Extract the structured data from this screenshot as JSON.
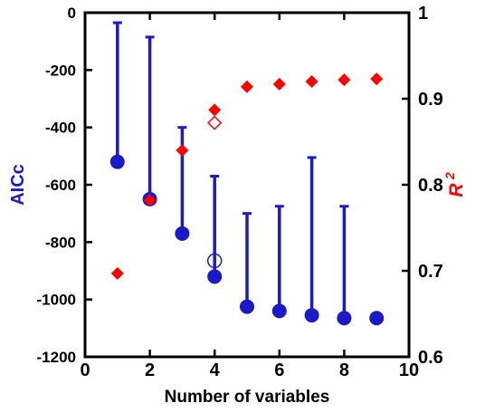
{
  "chart_data": {
    "type": "scatter",
    "xlabel": "Number of variables",
    "ylabel_left": "AICc",
    "ylabel_right_base": "R",
    "ylabel_right_sup": "2",
    "xlim": [
      0,
      10
    ],
    "ylim_left": [
      -1200,
      0
    ],
    "ylim_right": [
      0.6,
      1.0
    ],
    "x_ticks": [
      "0",
      "2",
      "4",
      "6",
      "8",
      "10"
    ],
    "y_left_ticks": [
      "0",
      "-200",
      "-400",
      "-600",
      "-800",
      "-1000",
      "-1200"
    ],
    "y_right_ticks": [
      "1",
      "0.9",
      "0.8",
      "0.7",
      "0.6"
    ],
    "colors": {
      "aicc": "#1a1ac8",
      "r2": "#ff0000"
    },
    "series": [
      {
        "axis": "left",
        "marker": "circle-filled",
        "x": [
          1,
          2,
          3,
          4,
          5,
          6,
          7,
          8,
          9
        ],
        "values": [
          -520,
          -650,
          -770,
          -920,
          -1025,
          -1040,
          -1055,
          -1065,
          -1065
        ]
      },
      {
        "axis": "left",
        "marker": "errorbar-upper",
        "x": [
          1,
          2,
          3,
          4,
          5,
          6,
          7,
          8
        ],
        "lower": [
          -520,
          -650,
          -770,
          -920,
          -1025,
          -1040,
          -1055,
          -1065
        ],
        "upper": [
          -35,
          -85,
          -400,
          -570,
          -700,
          -675,
          -505,
          -675
        ]
      },
      {
        "axis": "left",
        "marker": "circle-open",
        "x": [
          4
        ],
        "values": [
          -865
        ]
      },
      {
        "axis": "right",
        "marker": "diamond-filled",
        "x": [
          1,
          2,
          3,
          4,
          5,
          6,
          7,
          8,
          9
        ],
        "values": [
          0.697,
          0.782,
          0.84,
          0.887,
          0.914,
          0.917,
          0.92,
          0.922,
          0.923
        ]
      },
      {
        "axis": "right",
        "marker": "diamond-open",
        "x": [
          4
        ],
        "values": [
          0.872
        ]
      }
    ]
  }
}
